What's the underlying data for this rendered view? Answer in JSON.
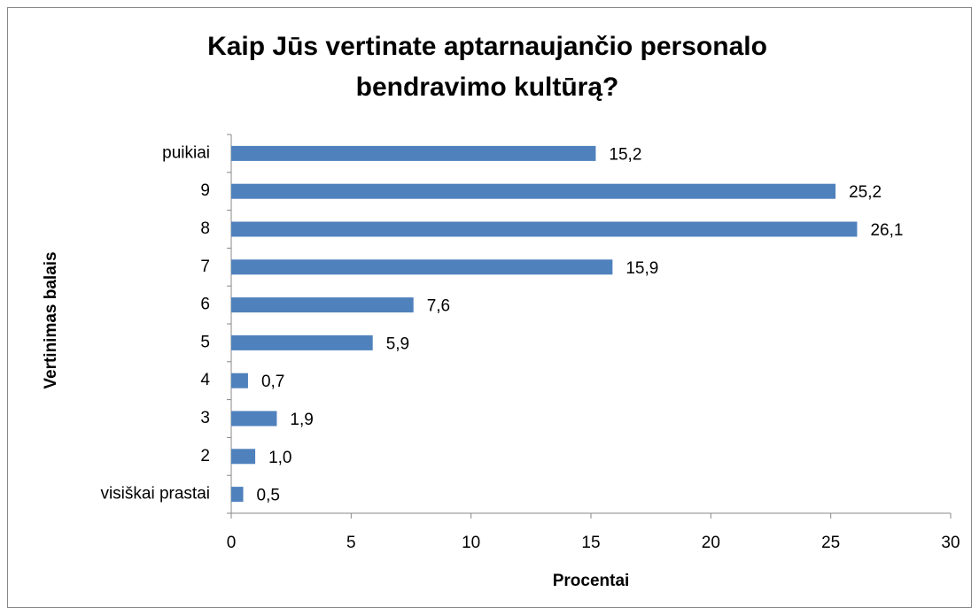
{
  "chart_data": {
    "type": "hbar",
    "title": "Kaip Jūs vertinate aptarnaujančio personalo bendravimo kultūrą?",
    "xlabel": "Procentai",
    "ylabel": "Vertinimas balais",
    "categories": [
      "visiškai prastai",
      "2",
      "3",
      "4",
      "5",
      "6",
      "7",
      "8",
      "9",
      "puikiai"
    ],
    "values": [
      0.5,
      1.0,
      1.9,
      0.7,
      5.9,
      7.6,
      15.9,
      26.1,
      25.2,
      15.2
    ],
    "value_labels": [
      "0,5",
      "1,0",
      "1,9",
      "0,7",
      "5,9",
      "7,6",
      "15,9",
      "26,1",
      "25,2",
      "15,2"
    ],
    "color": "#4f81bd",
    "xlim": [
      0,
      30
    ],
    "xticks": [
      0,
      5,
      10,
      15,
      20,
      25,
      30
    ],
    "grid": false
  }
}
